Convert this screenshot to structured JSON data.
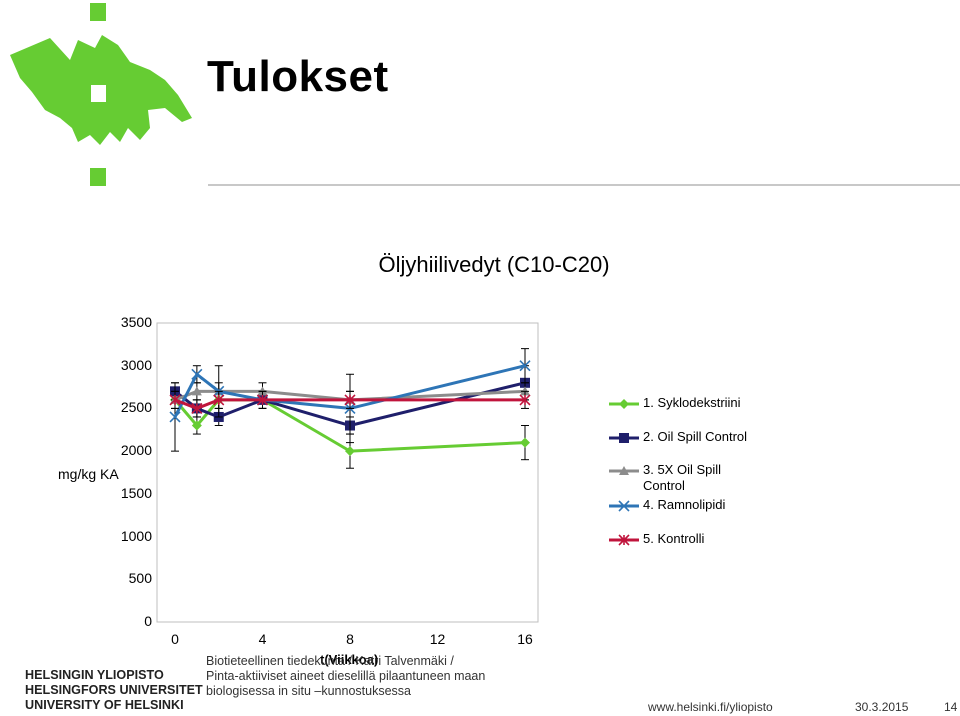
{
  "slide": {
    "title": "Tulokset",
    "footer_lines": [
      "Biotieteellinen tiedekunta / Katri Talvenmäki /",
      "Pinta-aktiiviset aineet dieselillä pilaantuneen maan",
      "biologisessa in situ –kunnostuksessa"
    ],
    "university_lines": [
      "HELSINGIN YLIOPISTO",
      "HELSINGFORS UNIVERSITET",
      "UNIVERSITY OF HELSINKI"
    ],
    "url": "www.helsinki.fi/yliopisto",
    "date": "30.3.2015",
    "page_number": "14",
    "brand_color": "#66cc33",
    "logo_icon": "flame-logo-icon"
  },
  "chart_data": {
    "type": "line",
    "title": "Öljyhiilivedyt (C10-C20)",
    "xlabel": "t(Viikkoa)",
    "ylabel": "mg/kg KA",
    "xlim": [
      0,
      16
    ],
    "ylim": [
      0,
      3500
    ],
    "xticks": [
      0,
      4,
      8,
      12,
      16
    ],
    "yticks": [
      0,
      500,
      1000,
      1500,
      2000,
      2500,
      3000,
      3500
    ],
    "grid": false,
    "legend_position": "right",
    "series": [
      {
        "name": "1. Syklodekstriini",
        "color": "#66cc33",
        "marker": "diamond",
        "x": [
          0,
          1,
          2,
          4,
          8,
          16
        ],
        "y": [
          2600,
          2300,
          2600,
          2600,
          2000,
          2100
        ],
        "err": [
          100,
          100,
          100,
          100,
          200,
          200
        ]
      },
      {
        "name": "2. Oil Spill Control",
        "color": "#1f1f6b",
        "marker": "square",
        "x": [
          0,
          1,
          2,
          4,
          8,
          16
        ],
        "y": [
          2700,
          2500,
          2400,
          2600,
          2300,
          2800
        ],
        "err": [
          100,
          100,
          100,
          100,
          100,
          200
        ]
      },
      {
        "name": "3. 5X Oil Spill Control",
        "color": "#8c8c8c",
        "marker": "triangle",
        "x": [
          0,
          1,
          2,
          4,
          8,
          16
        ],
        "y": [
          2600,
          2700,
          2700,
          2700,
          2600,
          2700
        ],
        "err": [
          100,
          100,
          100,
          100,
          100,
          100
        ]
      },
      {
        "name": "4. Ramnolipidi",
        "color": "#2e75b6",
        "marker": "x",
        "x": [
          0,
          1,
          2,
          4,
          8,
          16
        ],
        "y": [
          2400,
          2900,
          2700,
          2600,
          2500,
          3000
        ],
        "err": [
          400,
          100,
          300,
          100,
          400,
          200
        ]
      },
      {
        "name": "5. Kontrolli",
        "color": "#c0143c",
        "marker": "star",
        "x": [
          0,
          1,
          2,
          4,
          8,
          16
        ],
        "y": [
          2600,
          2500,
          2600,
          2600,
          2600,
          2600
        ],
        "err": [
          100,
          100,
          100,
          100,
          100,
          100
        ]
      }
    ]
  }
}
